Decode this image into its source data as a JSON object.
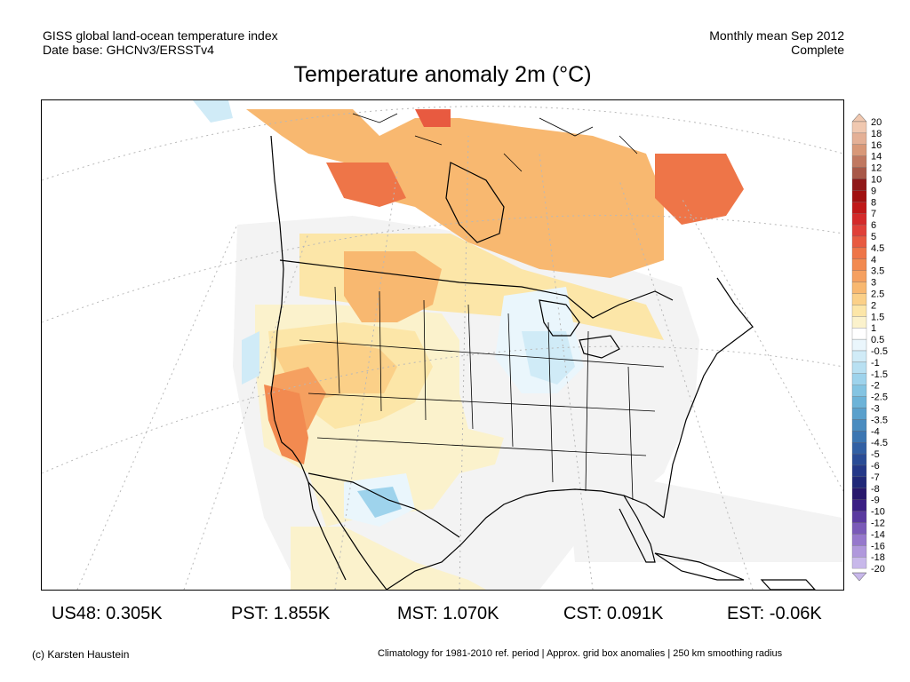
{
  "header": {
    "left_line1": "GISS global land-ocean temperature index",
    "left_line2": "Date base: GHCNv3/ERSSTv4",
    "right_line1": "Monthly mean Sep 2012",
    "right_line2": "Complete"
  },
  "title": "Temperature anomaly 2m (°C)",
  "colorbar": {
    "labels": [
      "20",
      "18",
      "16",
      "14",
      "12",
      "10",
      "9",
      "8",
      "7",
      "6",
      "5",
      "4.5",
      "4",
      "3.5",
      "3",
      "2.5",
      "2",
      "1.5",
      "1",
      "0.5",
      "-0.5",
      "-1",
      "-1.5",
      "-2",
      "-2.5",
      "-3",
      "-3.5",
      "-4",
      "-4.5",
      "-5",
      "-6",
      "-7",
      "-8",
      "-9",
      "-10",
      "-12",
      "-14",
      "-16",
      "-18",
      "-20"
    ],
    "colors": [
      "#f0c8b0",
      "#e4b096",
      "#d89878",
      "#c07860",
      "#a85848",
      "#901818",
      "#a01010",
      "#c01818",
      "#d42a2a",
      "#e04038",
      "#e85a40",
      "#ee7548",
      "#f28a50",
      "#f5a060",
      "#f8b870",
      "#fbd088",
      "#fce6a8",
      "#fbf2cc",
      "#ffffff",
      "#eaf6fc",
      "#d0ebf7",
      "#b8e0f2",
      "#9ed3ec",
      "#84c4e2",
      "#6cb3d8",
      "#5aa0cc",
      "#4a8cc0",
      "#3c76b2",
      "#3260a4",
      "#2a4c96",
      "#243888",
      "#202878",
      "#28186c",
      "#3a1e84",
      "#5a3aa0",
      "#7a5ab8",
      "#9678cc",
      "#b098dc",
      "#c8b8ea"
    ]
  },
  "regions": {
    "us48": "US48: 0.305K",
    "pst": "PST: 1.855K",
    "mst": "MST: 1.070K",
    "cst": "CST: 0.091K",
    "est": "EST: -0.06K"
  },
  "footer": {
    "left": "(c) Karsten Haustein",
    "right": "Climatology for 1981-2010 ref. period | Approx. grid box anomalies | 250 km smoothing radius"
  }
}
